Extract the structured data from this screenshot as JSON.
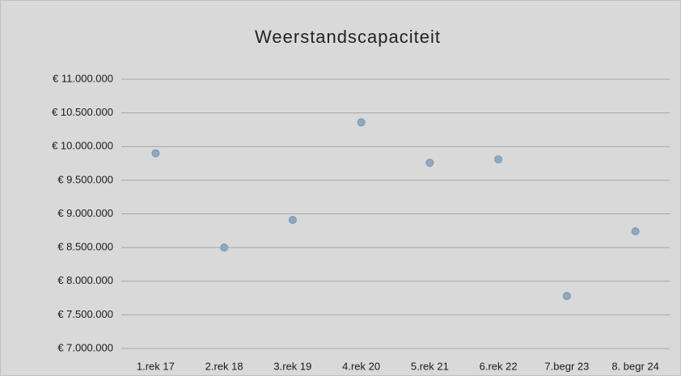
{
  "chart_data": {
    "type": "line",
    "title": "Weerstandscapaciteit",
    "categories": [
      "1.rek 17",
      "2.rek 18",
      "3.rek 19",
      "4.rek 20",
      "5.rek 21",
      "6.rek 22",
      "7.begr 23",
      "8. begr 24"
    ],
    "series": [
      {
        "name": "Weerstandscapaciteit",
        "color": "#5b9bd5",
        "values": [
          9900000,
          8500000,
          8910000,
          10360000,
          9760000,
          9810000,
          7780000,
          8740000
        ]
      }
    ],
    "ylim": [
      7000000,
      11000000
    ],
    "yticks": [
      {
        "value": 7000000,
        "label": "€ 7.000.000"
      },
      {
        "value": 7500000,
        "label": "€ 7.500.000"
      },
      {
        "value": 8000000,
        "label": "€ 8.000.000"
      },
      {
        "value": 8500000,
        "label": "€ 8.500.000"
      },
      {
        "value": 9000000,
        "label": "€ 9.000.000"
      },
      {
        "value": 9500000,
        "label": "€ 9.500.000"
      },
      {
        "value": 10000000,
        "label": "€ 10.000.000"
      },
      {
        "value": 10500000,
        "label": "€ 10.500.000"
      },
      {
        "value": 11000000,
        "label": "€ 11.000.000"
      }
    ],
    "grid": true
  }
}
